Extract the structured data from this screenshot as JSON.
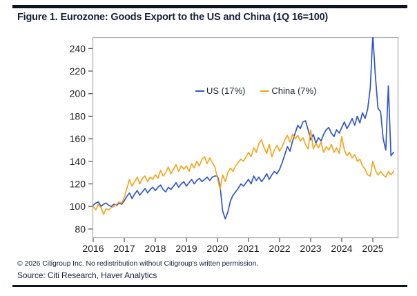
{
  "figure": {
    "title": "Figure 1. Eurozone: Goods Export to the US and China (1Q 16=100)",
    "copyright": "© 2026 Citigroup Inc. No redistribution without Citigroup's written permission.",
    "source": "Source: Citi Research, Haver Analytics"
  },
  "colors": {
    "us_line": "#2f55cc",
    "china_line": "#f6a51f",
    "rule_bar": "#0d1424",
    "title_text": "#15203a",
    "footer_text": "#15203a",
    "legend_text": "#1a2233",
    "frame": "#ababab",
    "tick": "#4d4d4d",
    "tick_label": "#1c1c1c"
  },
  "chart_data": {
    "type": "line",
    "title": "Eurozone goods exports to the US and China, index 1Q 2016 = 100, monthly Jan 2016 - Sep 2025",
    "xlabel": "",
    "ylabel": "",
    "x_tick_labels": [
      "2016",
      "2017",
      "2018",
      "2019",
      "2020",
      "2021",
      "2022",
      "2023",
      "2024",
      "2025"
    ],
    "y_ticks": [
      80,
      100,
      120,
      140,
      160,
      180,
      200,
      220,
      240
    ],
    "ylim": [
      72,
      250
    ],
    "grid": false,
    "legend_position": "top-center-inside",
    "note": "US series spike in early 2025 exceeds axis maximum and is clipped at plot top",
    "series": [
      {
        "name": "US (17%)",
        "color_key": "us_line",
        "values": [
          101,
          103,
          104,
          100,
          102,
          103,
          101,
          100,
          102,
          101,
          103,
          102,
          105,
          109,
          112,
          107,
          111,
          114,
          110,
          113,
          116,
          112,
          115,
          117,
          114,
          117,
          119,
          115,
          113,
          117,
          115,
          118,
          121,
          117,
          120,
          122,
          118,
          121,
          124,
          120,
          123,
          125,
          122,
          124,
          126,
          123,
          126,
          127,
          127,
          118,
          96,
          89,
          95,
          105,
          110,
          113,
          116,
          120,
          118,
          121,
          124,
          120,
          127,
          123,
          126,
          122,
          125,
          129,
          124,
          128,
          131,
          129,
          133,
          139,
          146,
          153,
          149,
          158,
          165,
          172,
          169,
          175,
          176,
          168,
          159,
          164,
          156,
          161,
          158,
          164,
          168,
          170,
          165,
          162,
          168,
          165,
          170,
          175,
          169,
          173,
          178,
          172,
          180,
          174,
          183,
          178,
          186,
          205,
          252,
          215,
          187,
          184,
          160,
          150,
          207,
          145,
          148
        ]
      },
      {
        "name": "China (7%)",
        "color_key": "china_line",
        "values": [
          100,
          97,
          102,
          99,
          93,
          98,
          97,
          99,
          100,
          102,
          104,
          103,
          108,
          116,
          124,
          118,
          122,
          126,
          120,
          125,
          127,
          122,
          126,
          124,
          128,
          125,
          132,
          127,
          130,
          135,
          129,
          133,
          137,
          131,
          136,
          133,
          136,
          131,
          138,
          134,
          140,
          136,
          142,
          144,
          138,
          143,
          139,
          135,
          125,
          115,
          128,
          122,
          130,
          134,
          131,
          136,
          139,
          142,
          140,
          144,
          148,
          144,
          152,
          148,
          156,
          159,
          152,
          147,
          155,
          144,
          150,
          154,
          149,
          153,
          159,
          163,
          157,
          164,
          160,
          163,
          158,
          161,
          155,
          151,
          168,
          151,
          156,
          152,
          157,
          148,
          153,
          150,
          155,
          148,
          152,
          147,
          162,
          150,
          145,
          148,
          143,
          146,
          140,
          142,
          136,
          133,
          128,
          127,
          140,
          132,
          128,
          131,
          128,
          126,
          131,
          128,
          131
        ]
      }
    ]
  }
}
